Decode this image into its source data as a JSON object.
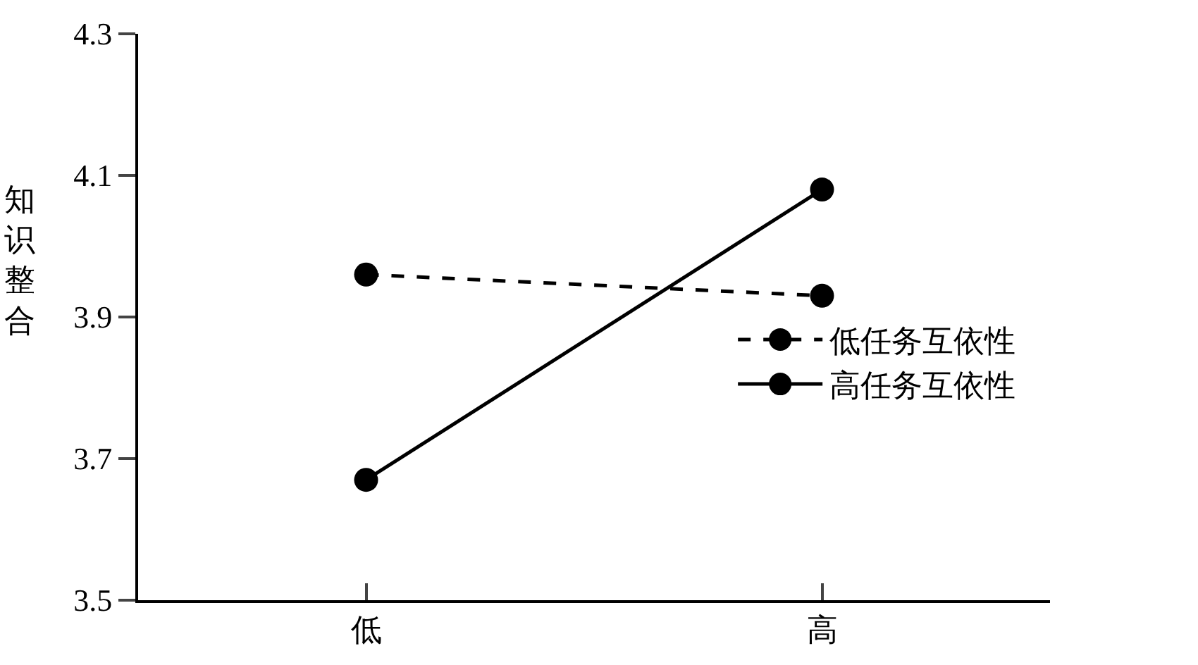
{
  "chart_data": {
    "type": "line",
    "ylabel": "知识整合",
    "categories": [
      "低",
      "高"
    ],
    "series": [
      {
        "name": "低任务互依性",
        "color": "#000000",
        "values": [
          3.96,
          3.93
        ],
        "line_style": "dashed"
      },
      {
        "name": "高任务互依性",
        "color": "#000000",
        "values": [
          3.67,
          4.08
        ],
        "line_style": "solid"
      }
    ],
    "ylim": [
      3.5,
      4.3
    ],
    "yticks": [
      3.5,
      3.7,
      3.9,
      4.1,
      4.3
    ],
    "marker": "circle",
    "legend": "right"
  }
}
